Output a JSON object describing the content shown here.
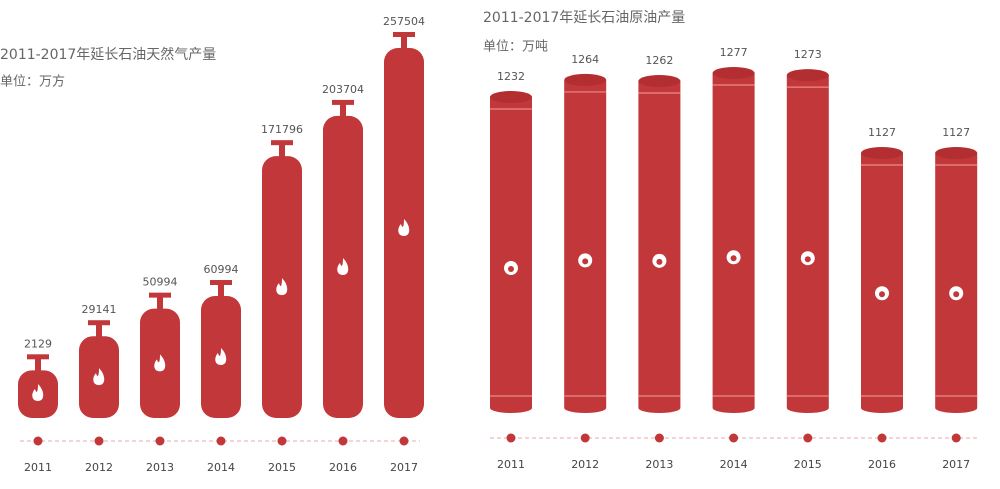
{
  "chart_data": [
    {
      "type": "bar",
      "title": "2011-2017年延长石油天然气产量",
      "subtitle": "单位：万方",
      "categories": [
        "2011",
        "2012",
        "2013",
        "2014",
        "2015",
        "2016",
        "2017"
      ],
      "values": [
        2129,
        29141,
        50994,
        60994,
        171796,
        203704,
        257504
      ],
      "color": "#c1373a"
    },
    {
      "type": "bar",
      "title": "2011-2017年延长石油原油产量",
      "subtitle": "单位：万吨",
      "categories": [
        "2011",
        "2012",
        "2013",
        "2014",
        "2015",
        "2016",
        "2017"
      ],
      "values": [
        1232,
        1264,
        1262,
        1277,
        1273,
        1127,
        1127
      ],
      "color": "#c1373a"
    }
  ]
}
